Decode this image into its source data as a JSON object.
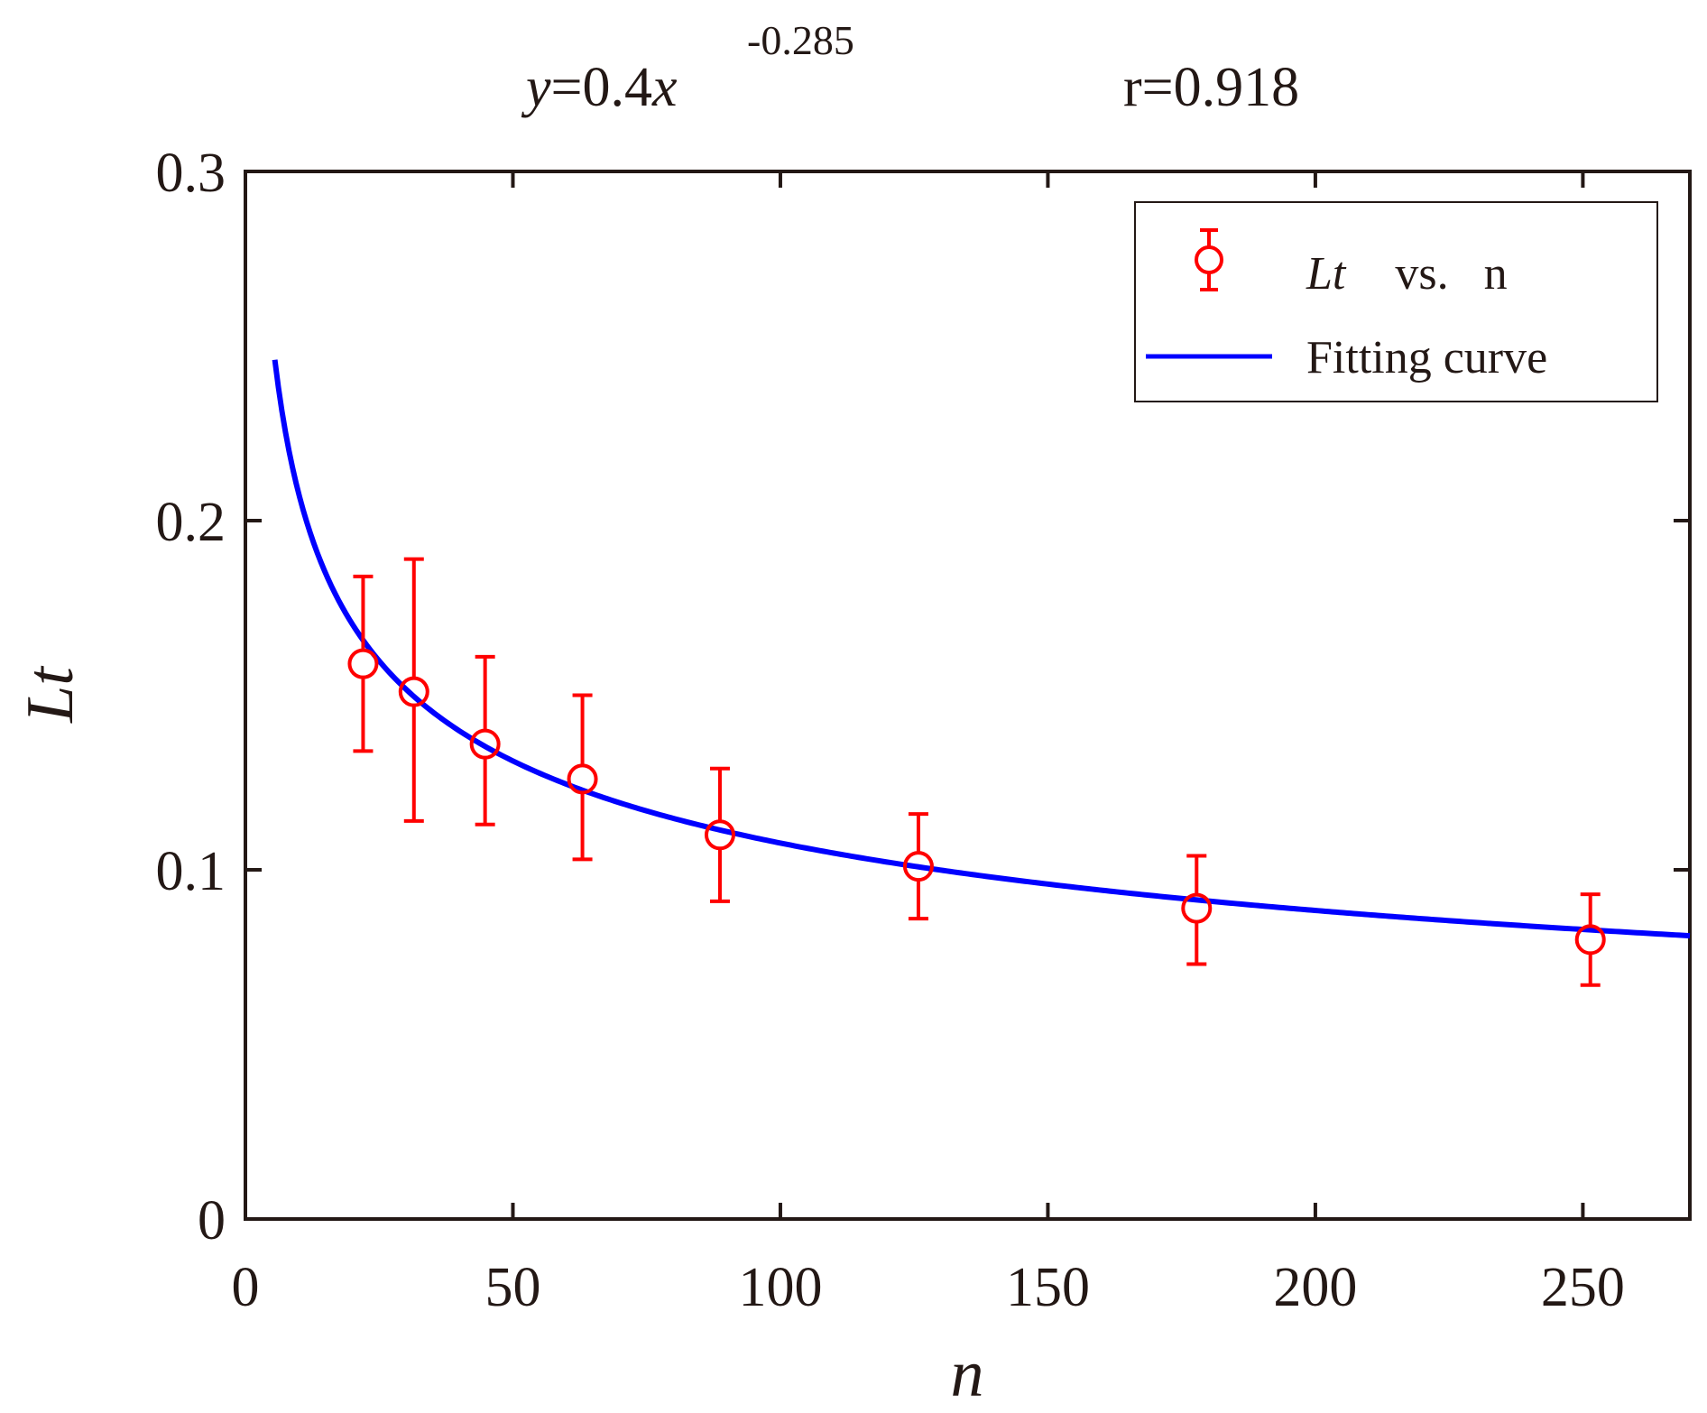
{
  "chart_data": {
    "type": "scatter",
    "title": "",
    "equation": {
      "prefix_var": "y",
      "eq_mid": "=0.4",
      "base_var": "x",
      "exponent": "-0.285",
      "r_text": "r=0.918"
    },
    "xlabel": "n",
    "ylabel": "Lt",
    "xlim": [
      0,
      270
    ],
    "ylim": [
      0,
      0.3
    ],
    "xticks": [
      {
        "value": 0,
        "label": "0"
      },
      {
        "value": 50,
        "label": "50"
      },
      {
        "value": 100,
        "label": "100"
      },
      {
        "value": 150,
        "label": "150"
      },
      {
        "value": 200,
        "label": "200"
      },
      {
        "value": 250,
        "label": "250"
      }
    ],
    "yticks": [
      {
        "value": 0,
        "label": "0"
      },
      {
        "value": 0.1,
        "label": "0.1"
      },
      {
        "value": 0.2,
        "label": "0.2"
      },
      {
        "value": 0.3,
        "label": "0.3"
      }
    ],
    "grid": false,
    "legend_position": "top-right",
    "series": [
      {
        "name_italic": "Lt",
        "name_rest": "vs.   n",
        "kind": "errorbar",
        "color": "#ff0000",
        "points": [
          {
            "x": 22,
            "y": 0.159,
            "lo": 0.134,
            "hi": 0.184
          },
          {
            "x": 31.5,
            "y": 0.151,
            "lo": 0.114,
            "hi": 0.189
          },
          {
            "x": 44.8,
            "y": 0.136,
            "lo": 0.113,
            "hi": 0.161
          },
          {
            "x": 63,
            "y": 0.126,
            "lo": 0.103,
            "hi": 0.15
          },
          {
            "x": 88.7,
            "y": 0.11,
            "lo": 0.091,
            "hi": 0.129
          },
          {
            "x": 125.8,
            "y": 0.101,
            "lo": 0.086,
            "hi": 0.116
          },
          {
            "x": 177.8,
            "y": 0.089,
            "lo": 0.073,
            "hi": 0.104
          },
          {
            "x": 251.4,
            "y": 0.08,
            "lo": 0.067,
            "hi": 0.093
          }
        ]
      },
      {
        "name": "Fitting curve",
        "kind": "line",
        "color": "#0000ff",
        "model": {
          "a": 0.4,
          "b": -0.285,
          "x_start": 5.5,
          "x_end": 270
        }
      }
    ]
  }
}
